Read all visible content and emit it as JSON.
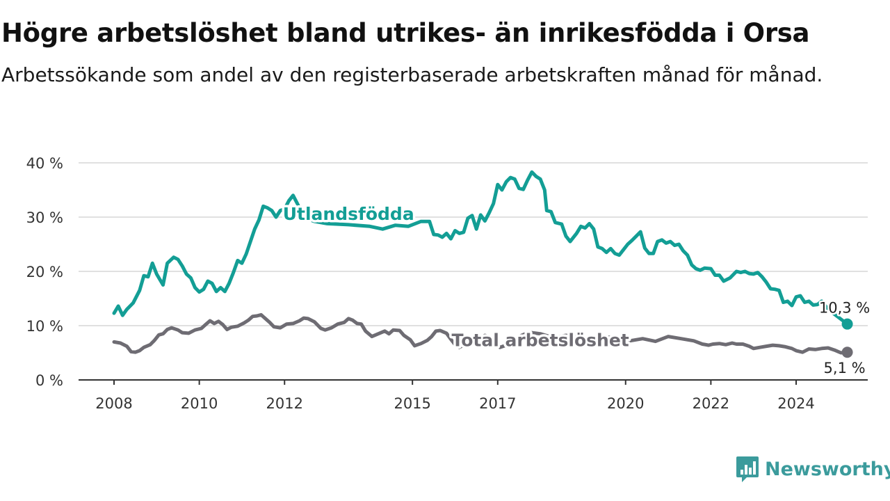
{
  "title": "Högre arbetslöshet bland utrikes- än inrikesfödda i Orsa",
  "subtitle": "Arbetssökande som andel av den registerbaserade arbetskraften månad för månad.",
  "brand": {
    "name": "Newsworthy",
    "icon": "newsworthy-logo-icon",
    "color": "#3b9b9c"
  },
  "chart_data": {
    "type": "line",
    "ylim": [
      0,
      40
    ],
    "yticks": [
      0,
      10,
      20,
      30,
      40
    ],
    "ytick_labels": [
      "0 %",
      "10 %",
      "20 %",
      "30 %",
      "40 %"
    ],
    "xlim": [
      2008,
      2025.5
    ],
    "xticks": [
      2008,
      2010,
      2012,
      2015,
      2017,
      2020,
      2022,
      2024
    ],
    "xtick_labels": [
      "2008",
      "2010",
      "2012",
      "2015",
      "2017",
      "2020",
      "2022",
      "2024"
    ],
    "grid": true,
    "series": [
      {
        "name": "Utlandsfödda",
        "color": "#139e95",
        "label_x": 2013.5,
        "label_y": 29.5,
        "end_label": "10,3 %",
        "points": [
          [
            2008.0,
            12.3
          ],
          [
            2008.1,
            13.6
          ],
          [
            2008.2,
            11.9
          ],
          [
            2008.3,
            13.0
          ],
          [
            2008.45,
            14.2
          ],
          [
            2008.6,
            16.5
          ],
          [
            2008.7,
            19.2
          ],
          [
            2008.8,
            19.0
          ],
          [
            2008.9,
            21.5
          ],
          [
            2009.0,
            19.5
          ],
          [
            2009.15,
            17.5
          ],
          [
            2009.25,
            21.5
          ],
          [
            2009.4,
            22.6
          ],
          [
            2009.5,
            22.2
          ],
          [
            2009.6,
            21.0
          ],
          [
            2009.7,
            19.5
          ],
          [
            2009.8,
            18.8
          ],
          [
            2009.9,
            17.0
          ],
          [
            2010.0,
            16.2
          ],
          [
            2010.1,
            16.7
          ],
          [
            2010.2,
            18.2
          ],
          [
            2010.3,
            17.8
          ],
          [
            2010.4,
            16.3
          ],
          [
            2010.5,
            17.0
          ],
          [
            2010.6,
            16.3
          ],
          [
            2010.7,
            17.8
          ],
          [
            2010.8,
            19.8
          ],
          [
            2010.9,
            22.0
          ],
          [
            2011.0,
            21.5
          ],
          [
            2011.1,
            23.2
          ],
          [
            2011.2,
            25.5
          ],
          [
            2011.3,
            27.8
          ],
          [
            2011.4,
            29.5
          ],
          [
            2011.5,
            32.0
          ],
          [
            2011.6,
            31.7
          ],
          [
            2011.7,
            31.2
          ],
          [
            2011.8,
            30.0
          ],
          [
            2011.9,
            31.2
          ],
          [
            2012.0,
            31.5
          ],
          [
            2012.1,
            33.0
          ],
          [
            2012.2,
            34.0
          ],
          [
            2012.3,
            32.5
          ],
          [
            2012.4,
            30.8
          ],
          [
            2012.5,
            29.8
          ],
          [
            2012.7,
            29.2
          ],
          [
            2013.0,
            28.8
          ],
          [
            2013.5,
            28.6
          ],
          [
            2014.0,
            28.3
          ],
          [
            2014.3,
            27.8
          ],
          [
            2014.6,
            28.5
          ],
          [
            2014.9,
            28.3
          ],
          [
            2015.2,
            29.2
          ],
          [
            2015.4,
            29.2
          ],
          [
            2015.5,
            26.8
          ],
          [
            2015.6,
            26.7
          ],
          [
            2015.7,
            26.3
          ],
          [
            2015.8,
            27.0
          ],
          [
            2015.9,
            26.0
          ],
          [
            2016.0,
            27.5
          ],
          [
            2016.1,
            27.0
          ],
          [
            2016.2,
            27.2
          ],
          [
            2016.3,
            29.8
          ],
          [
            2016.4,
            30.3
          ],
          [
            2016.5,
            27.8
          ],
          [
            2016.6,
            30.4
          ],
          [
            2016.7,
            29.3
          ],
          [
            2016.8,
            30.8
          ],
          [
            2016.9,
            32.5
          ],
          [
            2017.0,
            36.0
          ],
          [
            2017.1,
            35.0
          ],
          [
            2017.2,
            36.5
          ],
          [
            2017.3,
            37.3
          ],
          [
            2017.4,
            37.0
          ],
          [
            2017.5,
            35.3
          ],
          [
            2017.6,
            35.1
          ],
          [
            2017.7,
            36.8
          ],
          [
            2017.8,
            38.3
          ],
          [
            2017.9,
            37.5
          ],
          [
            2018.0,
            37.0
          ],
          [
            2018.1,
            35.0
          ],
          [
            2018.15,
            31.2
          ],
          [
            2018.25,
            31.0
          ],
          [
            2018.35,
            29.0
          ],
          [
            2018.5,
            28.7
          ],
          [
            2018.6,
            26.5
          ],
          [
            2018.7,
            25.5
          ],
          [
            2018.85,
            27.0
          ],
          [
            2018.95,
            28.3
          ],
          [
            2019.05,
            28.0
          ],
          [
            2019.15,
            28.8
          ],
          [
            2019.25,
            27.8
          ],
          [
            2019.35,
            24.5
          ],
          [
            2019.45,
            24.2
          ],
          [
            2019.55,
            23.5
          ],
          [
            2019.65,
            24.2
          ],
          [
            2019.75,
            23.3
          ],
          [
            2019.85,
            23.0
          ],
          [
            2019.95,
            24.0
          ],
          [
            2020.05,
            25.0
          ],
          [
            2020.15,
            25.7
          ],
          [
            2020.25,
            26.5
          ],
          [
            2020.35,
            27.3
          ],
          [
            2020.45,
            24.3
          ],
          [
            2020.55,
            23.3
          ],
          [
            2020.65,
            23.3
          ],
          [
            2020.75,
            25.5
          ],
          [
            2020.85,
            25.8
          ],
          [
            2020.95,
            25.2
          ],
          [
            2021.05,
            25.5
          ],
          [
            2021.15,
            24.8
          ],
          [
            2021.25,
            25.0
          ],
          [
            2021.35,
            23.8
          ],
          [
            2021.45,
            23.0
          ],
          [
            2021.55,
            21.2
          ],
          [
            2021.65,
            20.5
          ],
          [
            2021.75,
            20.2
          ],
          [
            2021.85,
            20.6
          ],
          [
            2022.0,
            20.5
          ],
          [
            2022.1,
            19.3
          ],
          [
            2022.2,
            19.3
          ],
          [
            2022.3,
            18.2
          ],
          [
            2022.45,
            18.8
          ],
          [
            2022.6,
            20.0
          ],
          [
            2022.7,
            19.8
          ],
          [
            2022.8,
            20.0
          ],
          [
            2022.9,
            19.6
          ],
          [
            2023.0,
            19.5
          ],
          [
            2023.1,
            19.8
          ],
          [
            2023.2,
            19.0
          ],
          [
            2023.3,
            18.0
          ],
          [
            2023.4,
            16.8
          ],
          [
            2023.5,
            16.7
          ],
          [
            2023.6,
            16.5
          ],
          [
            2023.7,
            14.3
          ],
          [
            2023.8,
            14.5
          ],
          [
            2023.9,
            13.7
          ],
          [
            2024.0,
            15.3
          ],
          [
            2024.1,
            15.5
          ],
          [
            2024.2,
            14.3
          ],
          [
            2024.3,
            14.5
          ],
          [
            2024.4,
            13.8
          ],
          [
            2024.5,
            13.9
          ],
          [
            2024.6,
            14.5
          ],
          [
            2024.75,
            13.0
          ],
          [
            2025.0,
            11.5
          ],
          [
            2025.2,
            10.3
          ]
        ]
      },
      {
        "name": "Total arbetslöshet",
        "color": "#6e6c73",
        "label_x": 2018.0,
        "label_y": 6.2,
        "end_label": "5,1 %",
        "points": [
          [
            2008.0,
            7.0
          ],
          [
            2008.15,
            6.8
          ],
          [
            2008.3,
            6.2
          ],
          [
            2008.4,
            5.2
          ],
          [
            2008.5,
            5.1
          ],
          [
            2008.6,
            5.4
          ],
          [
            2008.7,
            6.0
          ],
          [
            2008.85,
            6.5
          ],
          [
            2008.95,
            7.3
          ],
          [
            2009.05,
            8.3
          ],
          [
            2009.15,
            8.5
          ],
          [
            2009.25,
            9.3
          ],
          [
            2009.35,
            9.6
          ],
          [
            2009.5,
            9.2
          ],
          [
            2009.6,
            8.7
          ],
          [
            2009.75,
            8.6
          ],
          [
            2009.9,
            9.2
          ],
          [
            2010.05,
            9.5
          ],
          [
            2010.15,
            10.2
          ],
          [
            2010.25,
            10.9
          ],
          [
            2010.35,
            10.4
          ],
          [
            2010.45,
            10.8
          ],
          [
            2010.55,
            10.2
          ],
          [
            2010.65,
            9.3
          ],
          [
            2010.75,
            9.7
          ],
          [
            2010.9,
            9.9
          ],
          [
            2011.05,
            10.5
          ],
          [
            2011.15,
            11.0
          ],
          [
            2011.25,
            11.7
          ],
          [
            2011.35,
            11.8
          ],
          [
            2011.45,
            12.0
          ],
          [
            2011.55,
            11.3
          ],
          [
            2011.65,
            10.6
          ],
          [
            2011.75,
            9.8
          ],
          [
            2011.9,
            9.6
          ],
          [
            2012.05,
            10.3
          ],
          [
            2012.2,
            10.4
          ],
          [
            2012.35,
            10.9
          ],
          [
            2012.45,
            11.4
          ],
          [
            2012.55,
            11.3
          ],
          [
            2012.7,
            10.7
          ],
          [
            2012.85,
            9.5
          ],
          [
            2012.95,
            9.2
          ],
          [
            2013.1,
            9.6
          ],
          [
            2013.25,
            10.3
          ],
          [
            2013.4,
            10.6
          ],
          [
            2013.5,
            11.3
          ],
          [
            2013.6,
            11.0
          ],
          [
            2013.7,
            10.4
          ],
          [
            2013.8,
            10.3
          ],
          [
            2013.9,
            9.0
          ],
          [
            2014.05,
            8.0
          ],
          [
            2014.2,
            8.5
          ],
          [
            2014.35,
            9.0
          ],
          [
            2014.45,
            8.5
          ],
          [
            2014.55,
            9.2
          ],
          [
            2014.7,
            9.1
          ],
          [
            2014.8,
            8.2
          ],
          [
            2014.95,
            7.4
          ],
          [
            2015.05,
            6.3
          ],
          [
            2015.2,
            6.7
          ],
          [
            2015.35,
            7.3
          ],
          [
            2015.45,
            8.0
          ],
          [
            2015.55,
            9.0
          ],
          [
            2015.65,
            9.1
          ],
          [
            2015.8,
            8.6
          ],
          [
            2015.9,
            7.5
          ],
          [
            2016.0,
            6.5
          ],
          [
            2016.1,
            6.0
          ],
          [
            2016.25,
            6.6
          ],
          [
            2016.35,
            6.5
          ],
          [
            2016.45,
            7.2
          ],
          [
            2016.6,
            7.6
          ],
          [
            2016.7,
            8.2
          ],
          [
            2016.85,
            7.8
          ],
          [
            2016.95,
            6.8
          ],
          [
            2017.05,
            6.0
          ],
          [
            2017.2,
            6.4
          ],
          [
            2017.35,
            7.0
          ],
          [
            2017.5,
            8.0
          ],
          [
            2017.65,
            8.5
          ],
          [
            2017.8,
            8.7
          ],
          [
            2018.0,
            8.5
          ],
          [
            2018.3,
            7.8
          ],
          [
            2018.6,
            8.2
          ],
          [
            2018.9,
            7.9
          ],
          [
            2019.2,
            7.5
          ],
          [
            2019.5,
            7.9
          ],
          [
            2019.8,
            7.8
          ],
          [
            2020.1,
            7.2
          ],
          [
            2020.4,
            7.6
          ],
          [
            2020.7,
            7.1
          ],
          [
            2021.0,
            8.0
          ],
          [
            2021.3,
            7.6
          ],
          [
            2021.6,
            7.2
          ],
          [
            2021.8,
            6.6
          ],
          [
            2021.95,
            6.4
          ],
          [
            2022.05,
            6.6
          ],
          [
            2022.2,
            6.7
          ],
          [
            2022.35,
            6.5
          ],
          [
            2022.5,
            6.8
          ],
          [
            2022.6,
            6.6
          ],
          [
            2022.75,
            6.6
          ],
          [
            2022.9,
            6.2
          ],
          [
            2023.0,
            5.8
          ],
          [
            2023.15,
            6.0
          ],
          [
            2023.3,
            6.2
          ],
          [
            2023.45,
            6.4
          ],
          [
            2023.6,
            6.3
          ],
          [
            2023.75,
            6.1
          ],
          [
            2023.9,
            5.8
          ],
          [
            2024.0,
            5.4
          ],
          [
            2024.15,
            5.1
          ],
          [
            2024.3,
            5.7
          ],
          [
            2024.45,
            5.6
          ],
          [
            2024.6,
            5.8
          ],
          [
            2024.75,
            5.9
          ],
          [
            2024.9,
            5.5
          ],
          [
            2025.05,
            5.0
          ],
          [
            2025.2,
            5.1
          ]
        ]
      }
    ]
  }
}
